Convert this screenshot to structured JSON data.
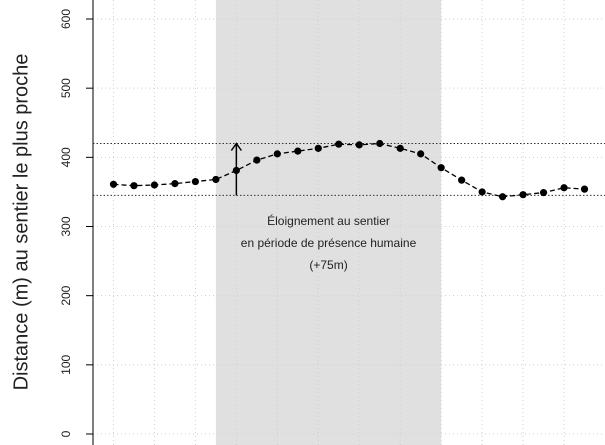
{
  "chart_data": {
    "type": "line",
    "ylabel": "Distance (m) au sentier le plus proche",
    "x": [
      0,
      1,
      2,
      3,
      4,
      5,
      6,
      7,
      8,
      9,
      10,
      11,
      12,
      13,
      14,
      15,
      16,
      17,
      18,
      19,
      20,
      21,
      22,
      23
    ],
    "series": [
      {
        "color": "#000000",
        "values": [
          361,
          359,
          360,
          362,
          365,
          368,
          381,
          396,
          405,
          409,
          413,
          419,
          418,
          420,
          413,
          405,
          385,
          367,
          350,
          343,
          346,
          349,
          356,
          354
        ]
      }
    ],
    "xlim": [
      -1,
      24
    ],
    "ylim": [
      0,
      625
    ],
    "xticks": [
      0,
      2,
      4,
      6,
      8,
      10,
      12,
      14,
      16,
      18,
      20,
      22
    ],
    "yticks": [
      0,
      100,
      200,
      300,
      400,
      500,
      600
    ],
    "grid": true,
    "shade": [
      5,
      16
    ],
    "hlines": [
      345,
      420
    ],
    "arrow": {
      "x": 6,
      "from": 345,
      "to": 420
    },
    "annotation": [
      "Éloignement au sentier",
      "en période de présence humaine",
      "(+75m)"
    ]
  }
}
